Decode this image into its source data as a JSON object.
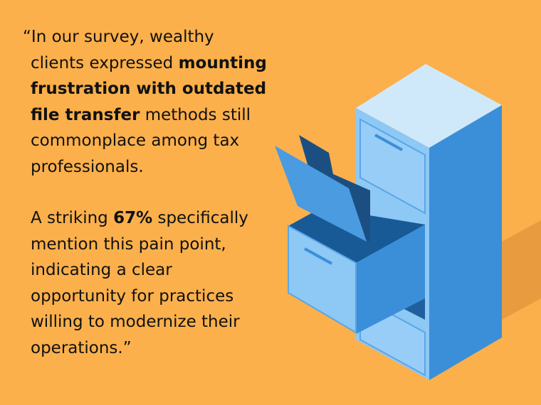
{
  "quote": {
    "paragraphs": [
      {
        "lines": [
          [
            {
              "text": "“In our survey, wealthy",
              "bold": false
            }
          ],
          [
            {
              "text": "clients expressed ",
              "bold": false
            },
            {
              "text": "mounting",
              "bold": true
            }
          ],
          [
            {
              "text": "frustration with outdated",
              "bold": true
            }
          ],
          [
            {
              "text": "file transfer",
              "bold": true
            },
            {
              "text": " methods still",
              "bold": false
            }
          ],
          [
            {
              "text": "commonplace among tax",
              "bold": false
            }
          ],
          [
            {
              "text": "professionals.",
              "bold": false
            }
          ]
        ]
      },
      {
        "lines": [
          [
            {
              "text": "A striking ",
              "bold": false
            },
            {
              "text": "67%",
              "bold": true
            },
            {
              "text": " specifically",
              "bold": false
            }
          ],
          [
            {
              "text": "mention this pain point,",
              "bold": false
            }
          ],
          [
            {
              "text": "indicating a clear",
              "bold": false
            }
          ],
          [
            {
              "text": "opportunity for practices",
              "bold": false
            }
          ],
          [
            {
              "text": "willing to modernize their",
              "bold": false
            }
          ],
          [
            {
              "text": "operations.”",
              "bold": false
            }
          ]
        ]
      }
    ]
  }
}
